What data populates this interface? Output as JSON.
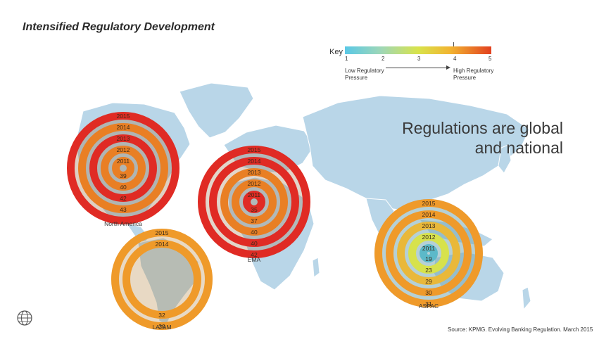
{
  "slide": {
    "title": "Intensified Regulatory Development",
    "headline": "Regulations are global and national",
    "source": "Source: KPMG. Evolving Banking Regulation. March 2015"
  },
  "key": {
    "label": "Key",
    "scale": [
      "1",
      "2",
      "3",
      "4",
      "5"
    ],
    "low_label": "Low Regulatory Pressure",
    "high_label": "High Regulatory Pressure",
    "colors": [
      "#5ac8e6",
      "#9fd7b6",
      "#d8e34b",
      "#f2b431",
      "#e2401f"
    ]
  },
  "regions": [
    {
      "name": "North America",
      "rings": [
        {
          "year": "2015",
          "value": "",
          "color": "#e02b24"
        },
        {
          "year": "2014",
          "value": "43",
          "color": "#e97f24"
        },
        {
          "year": "2013",
          "value": "42",
          "color": "#e02b24"
        },
        {
          "year": "2012",
          "value": "40",
          "color": "#e97f24"
        },
        {
          "year": "2011",
          "value": "39",
          "color": "#e97f24"
        }
      ]
    },
    {
      "name": "EMA",
      "rings": [
        {
          "year": "2015",
          "value": "42",
          "color": "#e02b24"
        },
        {
          "year": "2014",
          "value": "40",
          "color": "#e02b24"
        },
        {
          "year": "2013",
          "value": "40",
          "color": "#e97f24"
        },
        {
          "year": "2012",
          "value": "37",
          "color": "#e97f24"
        },
        {
          "year": "2011",
          "value": "35",
          "color": "#e02b24"
        }
      ]
    },
    {
      "name": "LATAM",
      "rings": [
        {
          "year": "2015",
          "value": "30",
          "color": "#ef9a2a"
        },
        {
          "year": "2014",
          "value": "32",
          "color": "#ef9a2a"
        }
      ]
    },
    {
      "name": "ASPAC",
      "rings": [
        {
          "year": "2015",
          "value": "31",
          "color": "#ef9a2a"
        },
        {
          "year": "2014",
          "value": "30",
          "color": "#ef9a2a"
        },
        {
          "year": "2013",
          "value": "29",
          "color": "#e9b83a"
        },
        {
          "year": "2012",
          "value": "23",
          "color": "#d7e24c"
        },
        {
          "year": "2011",
          "value": "19",
          "color": "#5cb9c9"
        }
      ]
    }
  ]
}
